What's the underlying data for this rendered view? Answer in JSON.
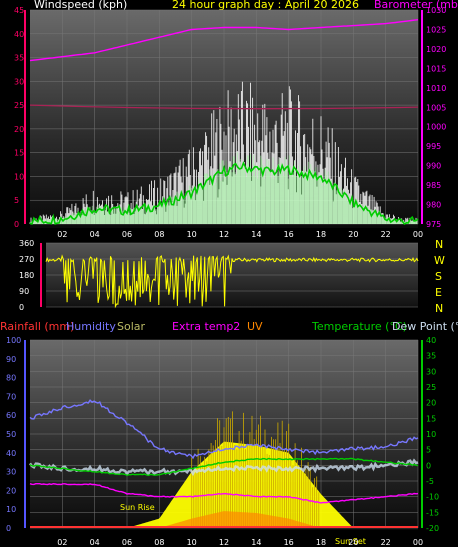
{
  "header": {
    "windspeed_label": "Windspeed (kph)",
    "title": "24 hour graph day : April 20 2026",
    "barometer_label": "Barometer (mb)"
  },
  "colors": {
    "windspeed": "#ffffff",
    "gust": "#00cc00",
    "avg_wind": "#99ff99",
    "barometer": "#ff00ff",
    "baro_dark": "#aa2255",
    "direction": "#ffff00",
    "rainfall": "#ff3333",
    "humidity": "#7777ff",
    "solar": "#ffff00",
    "extra_temp": "#ff00ff",
    "uv": "#ff8800",
    "temperature": "#00cc00",
    "dew_point": "#ccddee",
    "axis_left_top": "#ff0066",
    "axis_right_top": "#ff00ff",
    "axis_left_bottom": "#5555ff",
    "axis_right_bottom": "#00cc00"
  },
  "compass": {
    "labels": [
      "N",
      "W",
      "S",
      "E",
      "N"
    ]
  },
  "bottom_legend": {
    "rainfall": "Rainfall (mm)",
    "humidity": "Humidity",
    "solar": "Solar",
    "extra_temp": "Extra temp2",
    "uv": "UV",
    "temperature": "Temperature (°C)",
    "dew_point": "Dew Point (°C)"
  },
  "annotations": {
    "sun_rise": "Sun Rise",
    "sun_set": "Sun Set"
  },
  "chart_data": [
    {
      "type": "line",
      "x_ticks": [
        "02",
        "04",
        "06",
        "08",
        "10",
        "12",
        "14",
        "16",
        "18",
        "20",
        "22",
        "00"
      ],
      "y_left": {
        "label": "Windspeed (kph)",
        "ticks": [
          "0",
          "5",
          "10",
          "15",
          "20",
          "25",
          "30",
          "35",
          "40",
          "45"
        ],
        "ylim": [
          0,
          45
        ]
      },
      "y_right": {
        "label": "Barometer (mb)",
        "ticks": [
          "975",
          "980",
          "985",
          "990",
          "995",
          "1000",
          "1005",
          "1010",
          "1015",
          "1020",
          "1025",
          "1030"
        ],
        "ylim": [
          975,
          1030
        ]
      },
      "series": [
        {
          "name": "Windspeed (kph)",
          "axis": "left",
          "x": [
            0,
            2,
            4,
            6,
            8,
            10,
            11,
            12,
            13,
            14,
            15,
            16,
            17,
            18,
            19,
            20,
            21,
            22,
            23,
            24
          ],
          "values": [
            1,
            2,
            6,
            5,
            7,
            12,
            16,
            20,
            22,
            21,
            20,
            21,
            19,
            18,
            13,
            8,
            5,
            2,
            1,
            1
          ]
        },
        {
          "name": "Barometer (mb)",
          "axis": "right",
          "x": [
            0,
            2,
            4,
            6,
            8,
            10,
            12,
            14,
            16,
            18,
            20,
            22,
            24
          ],
          "values": [
            1017,
            1018,
            1019,
            1021,
            1023,
            1025,
            1025.5,
            1025.5,
            1025,
            1025.5,
            1026,
            1026.5,
            1027.5
          ]
        }
      ]
    },
    {
      "type": "scatter",
      "x_ticks": [
        "02",
        "04",
        "06",
        "08",
        "10",
        "12",
        "14",
        "16",
        "18",
        "20",
        "22",
        "00"
      ],
      "y_left": {
        "ticks": [
          "0",
          "90",
          "180",
          "270",
          "360"
        ],
        "ylim": [
          0,
          360
        ]
      },
      "series": [
        {
          "name": "Wind direction",
          "x": [
            0,
            2,
            4,
            6,
            8,
            10,
            12,
            14,
            16,
            18,
            20,
            22,
            24
          ],
          "values": [
            270,
            180,
            200,
            150,
            220,
            270,
            260,
            265,
            260,
            255,
            270,
            270,
            270
          ]
        }
      ]
    },
    {
      "type": "line",
      "x_ticks": [
        "02",
        "04",
        "06",
        "08",
        "10",
        "12",
        "14",
        "16",
        "18",
        "20",
        "22",
        "00"
      ],
      "y_left": {
        "label": "Rainfall (mm)",
        "ticks": [
          "0",
          "10",
          "20",
          "30",
          "40",
          "50",
          "60",
          "70",
          "80",
          "90",
          "100"
        ],
        "ylim": [
          0,
          100
        ]
      },
      "y_right": {
        "label": "Temperature (°C)",
        "ticks": [
          "-20",
          "-15",
          "-10",
          "-5",
          "0",
          "5",
          "10",
          "15",
          "20",
          "25",
          "30",
          "35",
          "40"
        ],
        "ylim": [
          -20,
          40
        ]
      },
      "series": [
        {
          "name": "Humidity",
          "axis": "left",
          "x": [
            0,
            2,
            4,
            6,
            8,
            10,
            12,
            14,
            16,
            18,
            20,
            22,
            24
          ],
          "values": [
            58,
            64,
            68,
            56,
            42,
            38,
            42,
            44,
            42,
            40,
            42,
            43,
            48
          ]
        },
        {
          "name": "Solar",
          "axis": "left",
          "x": [
            6,
            8,
            10,
            12,
            14,
            16,
            18,
            20
          ],
          "values": [
            0,
            5,
            30,
            46,
            44,
            40,
            18,
            0
          ]
        },
        {
          "name": "Temperature (°C)",
          "axis": "right",
          "x": [
            0,
            2,
            4,
            6,
            8,
            10,
            12,
            14,
            16,
            18,
            20,
            22,
            24
          ],
          "values": [
            0,
            -1,
            -2,
            -3,
            -3,
            -1,
            1,
            2,
            2,
            2,
            2,
            1,
            0
          ]
        },
        {
          "name": "Dew Point (°C)",
          "axis": "right",
          "x": [
            0,
            2,
            4,
            6,
            8,
            10,
            12,
            14,
            16,
            18,
            20,
            22,
            24
          ],
          "values": [
            0,
            -1,
            -1,
            -2,
            -2,
            -2,
            -1,
            -1,
            -1,
            -1,
            -1,
            0,
            1
          ]
        },
        {
          "name": "Extra temp2",
          "axis": "right",
          "x": [
            0,
            2,
            4,
            6,
            8,
            10,
            12,
            14,
            16,
            18,
            20,
            22,
            24
          ],
          "values": [
            -6,
            -6,
            -6,
            -9,
            -10,
            -10,
            -9,
            -10,
            -10,
            -12,
            -11,
            -10,
            -9
          ]
        },
        {
          "name": "UV",
          "axis": "left",
          "x": [
            8,
            10,
            12,
            14,
            16,
            18
          ],
          "values": [
            0,
            5,
            9,
            8,
            5,
            0
          ]
        },
        {
          "name": "Rainfall (mm)",
          "axis": "left",
          "x": [
            0,
            24
          ],
          "values": [
            0,
            0
          ]
        }
      ]
    }
  ]
}
